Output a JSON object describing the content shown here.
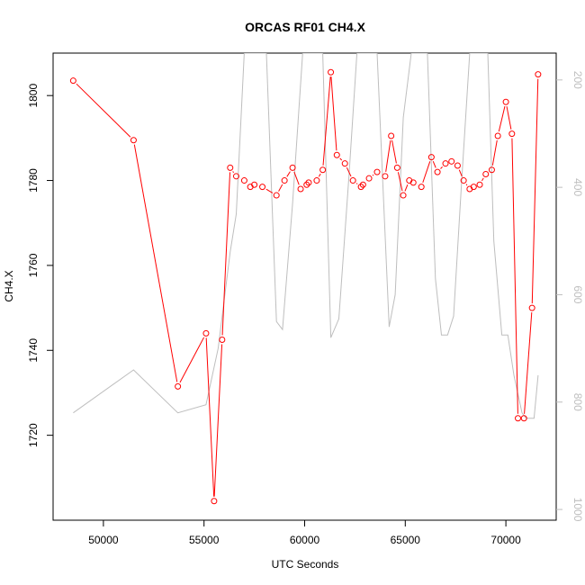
{
  "chart_data": {
    "type": "line",
    "title": "ORCAS RF01 CH4.X",
    "xlabel": "UTC Seconds",
    "ylabel": "CH4.X",
    "y2label": "",
    "xlim": [
      47500,
      72500
    ],
    "ylim": [
      1700,
      1810
    ],
    "y2lim": [
      1020,
      150
    ],
    "y2_reversed": true,
    "grid": false,
    "x_ticks": [
      50000,
      55000,
      60000,
      65000,
      70000
    ],
    "y_ticks": [
      1720,
      1740,
      1760,
      1780,
      1800
    ],
    "y2_ticks": [
      200,
      400,
      600,
      800,
      1000
    ],
    "colors": {
      "primary": "#ff0000",
      "secondary": "#bebebe",
      "axis": "#000000",
      "secondary_axis": "#bebebe"
    },
    "series": [
      {
        "axis": "left",
        "style": "line+points",
        "x": [
          48500,
          51500,
          53700,
          55100,
          55500,
          55900,
          56300,
          56600,
          57000,
          57300,
          57500,
          57900,
          58600,
          59000,
          59400,
          59800,
          60100,
          60200,
          60600,
          60900,
          61300,
          61600,
          62000,
          62400,
          62800,
          62900,
          63200,
          63600,
          64000,
          64300,
          64600,
          64900,
          65200,
          65400,
          65800,
          66300,
          66600,
          67000,
          67300,
          67600,
          67900,
          68200,
          68400,
          68700,
          69000,
          69300,
          69600,
          70000,
          70300,
          70600,
          70900,
          71300,
          71600
        ],
        "y": [
          1803.5,
          1789.5,
          1731.5,
          1744.0,
          1704.5,
          1742.5,
          1783.0,
          1781.0,
          1780.0,
          1778.5,
          1779.0,
          1778.5,
          1776.5,
          1780.0,
          1783.0,
          1778.0,
          1779.0,
          1779.5,
          1780.0,
          1782.5,
          1805.5,
          1786.0,
          1784.0,
          1780.0,
          1778.5,
          1779.0,
          1780.5,
          1782.0,
          1781.0,
          1790.5,
          1783.0,
          1776.5,
          1780.0,
          1779.5,
          1778.5,
          1785.5,
          1782.0,
          1784.0,
          1784.5,
          1783.5,
          1780.0,
          1778.0,
          1778.5,
          1779.0,
          1781.5,
          1782.5,
          1790.5,
          1798.5,
          1791.0,
          1724.0,
          1724.0,
          1750.0,
          1805.0
        ]
      },
      {
        "axis": "right",
        "style": "line",
        "x": [
          48500,
          51500,
          53700,
          55100,
          55700,
          56300,
          56600,
          57000,
          57400,
          58100,
          58600,
          58900,
          59400,
          59900,
          60400,
          60900,
          61300,
          61700,
          62200,
          62600,
          63100,
          63600,
          64200,
          64500,
          64900,
          65300,
          65700,
          66100,
          66500,
          66800,
          67100,
          67400,
          67800,
          68200,
          68700,
          69100,
          69400,
          69800,
          70100,
          70400,
          70800,
          71000,
          71400,
          71600
        ],
        "y": [
          820,
          740,
          820,
          805,
          700,
          520,
          450,
          150,
          150,
          150,
          650,
          665,
          430,
          150,
          150,
          150,
          680,
          645,
          380,
          150,
          150,
          150,
          660,
          600,
          270,
          150,
          150,
          150,
          570,
          675,
          675,
          640,
          390,
          150,
          150,
          150,
          500,
          675,
          675,
          750,
          820,
          830,
          830,
          750
        ]
      }
    ]
  }
}
